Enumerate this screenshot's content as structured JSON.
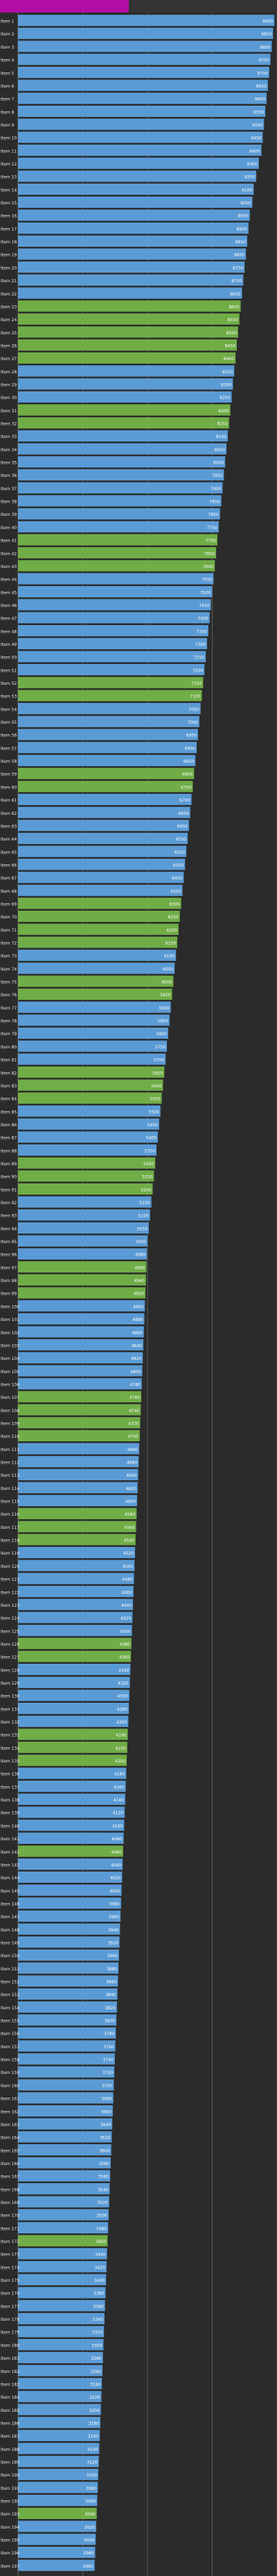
{
  "header": {
    "tab_left": "",
    "tab_right": ""
  },
  "chart_data": {
    "type": "bar",
    "orientation": "horizontal",
    "title": "",
    "xlabel": "",
    "ylabel": "",
    "xlim": [
      0,
      10000
    ],
    "grid": true,
    "legend": "none",
    "colors": {
      "blue": "#5b9bd5",
      "green": "#70ad47",
      "grid": "#7a7a7a",
      "background": "#2b2b2b"
    },
    "categories": [
      "Item 1",
      "Item 2",
      "Item 3",
      "Item 4",
      "Item 5",
      "Item 6",
      "Item 7",
      "Item 8",
      "Item 9",
      "Item 10",
      "Item 11",
      "Item 12",
      "Item 13",
      "Item 14",
      "Item 15",
      "Item 16",
      "Item 17",
      "Item 18",
      "Item 19",
      "Item 20",
      "Item 21",
      "Item 22",
      "Item 23",
      "Item 24",
      "Item 25",
      "Item 26",
      "Item 27",
      "Item 28",
      "Item 29",
      "Item 30",
      "Item 31",
      "Item 32",
      "Item 33",
      "Item 34",
      "Item 35",
      "Item 36",
      "Item 37",
      "Item 38",
      "Item 39",
      "Item 40",
      "Item 41",
      "Item 42",
      "Item 43",
      "Item 44",
      "Item 45",
      "Item 46",
      "Item 47",
      "Item 48",
      "Item 49",
      "Item 50",
      "Item 51",
      "Item 52",
      "Item 53",
      "Item 54",
      "Item 55",
      "Item 56",
      "Item 57",
      "Item 58",
      "Item 59",
      "Item 60",
      "Item 61",
      "Item 62",
      "Item 63",
      "Item 64",
      "Item 65",
      "Item 66",
      "Item 67",
      "Item 68",
      "Item 69",
      "Item 70",
      "Item 71",
      "Item 72",
      "Item 73",
      "Item 74",
      "Item 75",
      "Item 76",
      "Item 77",
      "Item 78",
      "Item 79",
      "Item 80",
      "Item 81",
      "Item 82",
      "Item 83",
      "Item 84",
      "Item 85",
      "Item 86",
      "Item 87",
      "Item 88",
      "Item 89",
      "Item 90",
      "Item 91",
      "Item 92",
      "Item 93",
      "Item 94",
      "Item 95",
      "Item 96",
      "Item 97",
      "Item 98",
      "Item 99",
      "Item 100",
      "Item 101",
      "Item 102",
      "Item 103",
      "Item 104",
      "Item 105",
      "Item 106",
      "Item 107",
      "Item 108",
      "Item 109",
      "Item 110",
      "Item 111",
      "Item 112",
      "Item 113",
      "Item 114",
      "Item 115",
      "Item 116",
      "Item 117",
      "Item 118",
      "Item 119",
      "Item 120",
      "Item 121",
      "Item 122",
      "Item 123",
      "Item 124",
      "Item 125",
      "Item 126",
      "Item 127",
      "Item 128",
      "Item 129",
      "Item 130",
      "Item 131",
      "Item 132",
      "Item 133",
      "Item 134",
      "Item 135",
      "Item 136",
      "Item 137",
      "Item 138",
      "Item 139",
      "Item 140",
      "Item 141",
      "Item 142",
      "Item 143",
      "Item 144",
      "Item 145",
      "Item 146",
      "Item 147",
      "Item 148",
      "Item 149",
      "Item 150",
      "Item 151",
      "Item 152",
      "Item 153",
      "Item 154",
      "Item 155",
      "Item 156",
      "Item 157",
      "Item 158",
      "Item 159",
      "Item 160",
      "Item 161",
      "Item 162",
      "Item 163",
      "Item 164",
      "Item 165",
      "Item 166",
      "Item 167",
      "Item 168",
      "Item 169",
      "Item 170",
      "Item 171",
      "Item 172",
      "Item 173",
      "Item 174",
      "Item 175",
      "Item 176",
      "Item 177",
      "Item 178",
      "Item 179",
      "Item 180",
      "Item 181",
      "Item 182",
      "Item 183",
      "Item 184",
      "Item 185",
      "Item 186",
      "Item 187",
      "Item 188",
      "Item 189",
      "Item 190",
      "Item 191",
      "Item 192",
      "Item 193",
      "Item 194",
      "Item 195",
      "Item 196",
      "Item 197"
    ],
    "series": [
      {
        "name": "",
        "values": [
          9900,
          9850,
          9800,
          9750,
          9700,
          9650,
          9600,
          9550,
          9500,
          9450,
          9400,
          9300,
          9200,
          9100,
          9050,
          8950,
          8900,
          8850,
          8800,
          8750,
          8700,
          8650,
          8600,
          8550,
          8500,
          8450,
          8400,
          8350,
          8300,
          8250,
          8200,
          8150,
          8100,
          8050,
          8000,
          7950,
          7900,
          7850,
          7800,
          7750,
          7700,
          7650,
          7600,
          7550,
          7500,
          7450,
          7400,
          7350,
          7300,
          7250,
          7200,
          7150,
          7100,
          7050,
          7000,
          6950,
          6900,
          6850,
          6800,
          6750,
          6700,
          6650,
          6600,
          6550,
          6500,
          6450,
          6400,
          6350,
          6300,
          6250,
          6200,
          6150,
          6100,
          6050,
          6000,
          5950,
          5900,
          5850,
          5800,
          5750,
          5700,
          5650,
          5600,
          5550,
          5500,
          5450,
          5400,
          5350,
          5300,
          5250,
          5200,
          5150,
          5100,
          5050,
          5000,
          4980,
          4960,
          4940,
          4920,
          4900,
          4880,
          4860,
          4840,
          4820,
          4800,
          4780,
          4760,
          4740,
          4720,
          4700,
          4680,
          4660,
          4640,
          4620,
          4600,
          4580,
          4560,
          4540,
          4520,
          4500,
          4480,
          4460,
          4440,
          4420,
          4400,
          4380,
          4360,
          4340,
          4320,
          4300,
          4280,
          4260,
          4240,
          4220,
          4200,
          4180,
          4160,
          4140,
          4120,
          4100,
          4080,
          4060,
          4040,
          4020,
          4000,
          3980,
          3960,
          3940,
          3920,
          3900,
          3880,
          3860,
          3840,
          3820,
          3800,
          3780,
          3760,
          3740,
          3720,
          3700,
          3680,
          3660,
          3640,
          3620,
          3600,
          3580,
          3560,
          3540,
          3520,
          3500,
          3480,
          3460,
          3440,
          3420,
          3400,
          3380,
          3360,
          3340,
          3320,
          3300,
          3280,
          3260,
          3240,
          3220,
          3200,
          3180,
          3160,
          3140,
          3120,
          3100,
          3080,
          3060,
          3040,
          3020,
          3000,
          2980,
          2960
        ],
        "bar_colors": [
          "blue",
          "blue",
          "blue",
          "blue",
          "blue",
          "blue",
          "blue",
          "blue",
          "blue",
          "blue",
          "blue",
          "blue",
          "blue",
          "blue",
          "blue",
          "blue",
          "blue",
          "blue",
          "blue",
          "blue",
          "blue",
          "blue",
          "green",
          "green",
          "green",
          "green",
          "green",
          "blue",
          "blue",
          "blue",
          "green",
          "green",
          "blue",
          "blue",
          "blue",
          "blue",
          "blue",
          "blue",
          "blue",
          "blue",
          "green",
          "green",
          "green",
          "blue",
          "blue",
          "blue",
          "blue",
          "blue",
          "blue",
          "blue",
          "blue",
          "green",
          "green",
          "blue",
          "blue",
          "blue",
          "blue",
          "blue",
          "green",
          "green",
          "blue",
          "blue",
          "blue",
          "blue",
          "blue",
          "blue",
          "blue",
          "blue",
          "green",
          "green",
          "green",
          "green",
          "blue",
          "blue",
          "green",
          "green",
          "blue",
          "blue",
          "blue",
          "blue",
          "blue",
          "green",
          "green",
          "green",
          "blue",
          "blue",
          "blue",
          "blue",
          "green",
          "green",
          "green",
          "blue",
          "blue",
          "blue",
          "blue",
          "blue",
          "green",
          "green",
          "green",
          "blue",
          "blue",
          "blue",
          "blue",
          "blue",
          "blue",
          "blue",
          "green",
          "green",
          "green",
          "green",
          "blue",
          "blue",
          "blue",
          "blue",
          "blue",
          "green",
          "green",
          "green",
          "blue",
          "blue",
          "blue",
          "blue",
          "blue",
          "blue",
          "blue",
          "green",
          "green",
          "blue",
          "blue",
          "blue",
          "blue",
          "blue",
          "green",
          "green",
          "green",
          "blue",
          "blue",
          "blue",
          "blue",
          "blue",
          "blue",
          "green",
          "blue",
          "blue",
          "blue",
          "blue",
          "blue",
          "blue",
          "blue",
          "blue",
          "blue",
          "blue",
          "blue",
          "blue",
          "blue",
          "blue",
          "blue",
          "blue",
          "blue",
          "blue",
          "blue",
          "blue",
          "blue",
          "blue",
          "blue",
          "blue",
          "blue",
          "blue",
          "blue",
          "blue",
          "blue",
          "green",
          "blue",
          "blue",
          "blue",
          "blue",
          "blue",
          "blue",
          "blue",
          "blue",
          "blue",
          "blue",
          "blue",
          "blue",
          "blue",
          "blue",
          "blue",
          "blue",
          "blue",
          "blue",
          "blue",
          "blue",
          "green",
          "blue",
          "blue",
          "blue",
          "blue"
        ]
      }
    ]
  }
}
